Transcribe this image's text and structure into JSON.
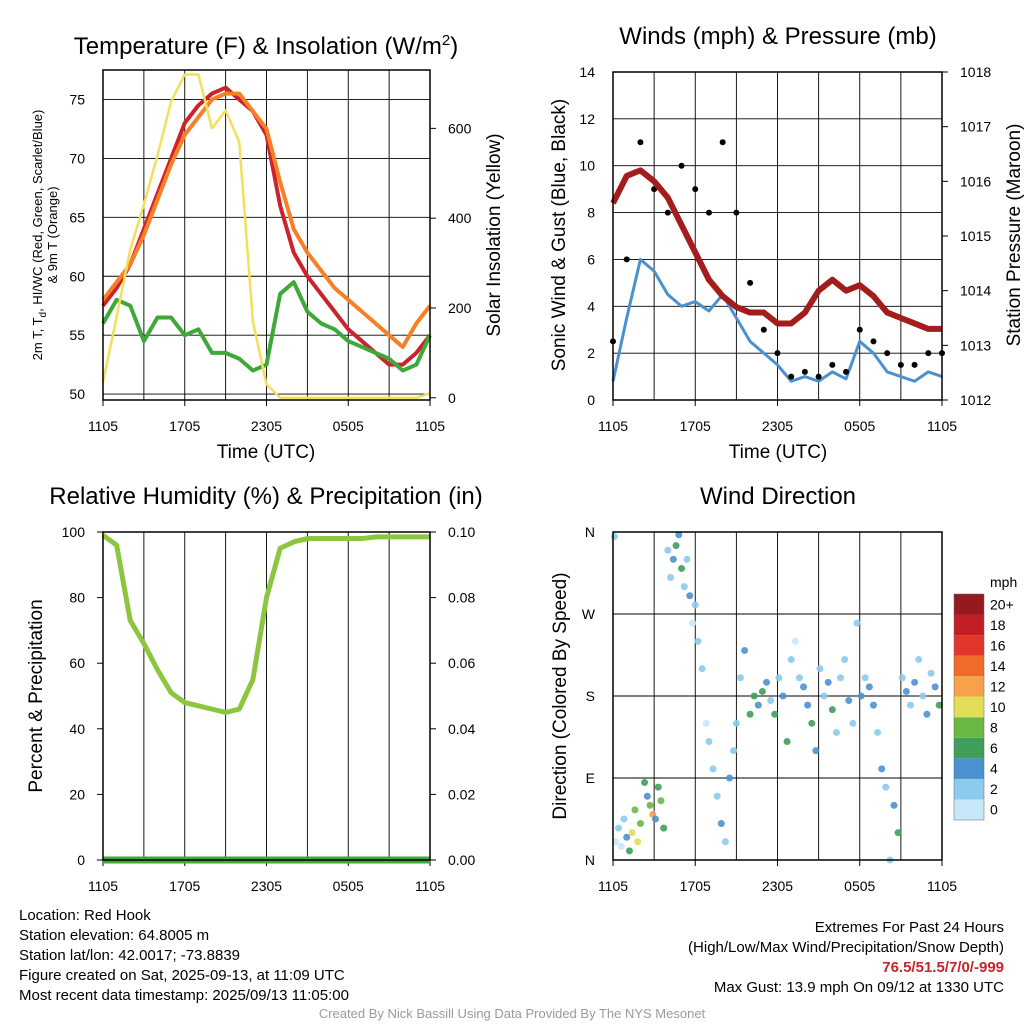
{
  "panels": {
    "temperature": {
      "title_main": "Temperature (F) & Insolation (W/m",
      "title_sup": "2",
      "title_end": ")",
      "ylabel_line1_a": "2m T, T",
      "ylabel_line1_sub": "d",
      "ylabel_line1_b": ", HI/WC (Red, Green, Scarlet/Blue)",
      "ylabel_line2": "& 9m T (Orange)",
      "ylabel_right": "Solar Insolation (Yellow)",
      "xlabel": "Time (UTC)"
    },
    "winds": {
      "title": "Winds (mph) & Pressure (mb)",
      "ylabel_left": "Sonic Wind & Gust (Blue, Black)",
      "ylabel_right": "Station Pressure (Maroon)",
      "xlabel": "Time (UTC)"
    },
    "humidity": {
      "title": "Relative Humidity (%) & Precipitation (in)",
      "ylabel_left": "Percent & Precipitation"
    },
    "direction": {
      "title": "Wind Direction",
      "ylabel_left": "Direction (Colored By Speed)",
      "colorbar_title": "mph"
    }
  },
  "footer": {
    "location": "Location: Red Hook",
    "elevation": "Station elevation: 64.8005 m",
    "latlon": "Station lat/lon: 42.0017; -73.8839",
    "created": "Figure created on Sat, 2025-09-13, at 11:09 UTC",
    "recent": "Most recent data timestamp: 2025/09/13 11:05:00",
    "extremes_title": "Extremes For Past 24 Hours",
    "extremes_legend": "(High/Low/Max Wind/Precipitation/Snow Depth)",
    "extremes_values": "76.5/51.5/7/0/-999",
    "max_gust": "Max Gust: 13.9 mph On 09/12 at 1330 UTC",
    "credit": "Created By Nick Bassill Using Data Provided By The NYS Mesonet"
  },
  "chart_data": [
    {
      "type": "line",
      "x_ticks": [
        "1105",
        "1705",
        "2305",
        "0505",
        "1105"
      ],
      "ylim": [
        49.5,
        77.5
      ],
      "y_ticks": [
        50,
        55,
        60,
        65,
        70,
        75
      ],
      "y2lim": [
        -5,
        730
      ],
      "y2_ticks": [
        0,
        200,
        400,
        600
      ],
      "x": [
        0,
        1,
        2,
        3,
        4,
        5,
        6,
        7,
        8,
        9,
        10,
        11,
        12,
        13,
        14,
        15,
        16,
        17,
        18,
        19,
        20,
        21,
        22,
        23,
        24
      ],
      "series": [
        {
          "axis": "left",
          "color": "#cc2229",
          "values": [
            57.5,
            59,
            61,
            64,
            67,
            70,
            73,
            74.5,
            75.5,
            76,
            75,
            74,
            72,
            66,
            62,
            60,
            58.5,
            57,
            55.5,
            54.5,
            53.5,
            52.5,
            52.5,
            53.5,
            55
          ]
        },
        {
          "axis": "left",
          "color": "#f58025",
          "values": [
            58,
            59.5,
            61,
            63.5,
            66.5,
            69.5,
            72,
            73.5,
            75,
            75.5,
            75.5,
            74,
            72.5,
            68,
            64,
            62,
            60.5,
            59,
            58,
            57,
            56,
            55,
            54,
            56,
            57.5
          ]
        },
        {
          "axis": "left",
          "color": "#3ea83a",
          "values": [
            56,
            58,
            57.5,
            54.5,
            56.5,
            56.5,
            55,
            55.5,
            53.5,
            53.5,
            53,
            52,
            52.5,
            58.5,
            59.5,
            57,
            56,
            55.5,
            54.5,
            54,
            53.5,
            53,
            52,
            52.5,
            55
          ]
        },
        {
          "axis": "right",
          "color": "#f3e05a",
          "values": [
            35,
            180,
            330,
            430,
            540,
            660,
            720,
            720,
            600,
            640,
            570,
            170,
            30,
            0,
            0,
            0,
            0,
            0,
            0,
            0,
            0,
            0,
            0,
            0,
            10
          ]
        }
      ]
    },
    {
      "type": "line",
      "x_ticks": [
        "1105",
        "1705",
        "2305",
        "0505",
        "1105"
      ],
      "ylim": [
        0,
        14
      ],
      "y_ticks": [
        0,
        2,
        4,
        6,
        8,
        10,
        12,
        14
      ],
      "y2lim": [
        1012,
        1018
      ],
      "y2_ticks": [
        1012,
        1013,
        1014,
        1015,
        1016,
        1017,
        1018
      ],
      "x": [
        0,
        1,
        2,
        3,
        4,
        5,
        6,
        7,
        8,
        9,
        10,
        11,
        12,
        13,
        14,
        15,
        16,
        17,
        18,
        19,
        20,
        21,
        22,
        23,
        24
      ],
      "series": [
        {
          "axis": "left",
          "color": "#4b91cf",
          "values": [
            0.8,
            3.5,
            6,
            5.5,
            4.5,
            4,
            4.2,
            3.8,
            4.5,
            3.5,
            2.5,
            2,
            1.5,
            0.8,
            1,
            0.8,
            1.2,
            0.9,
            2.5,
            2,
            1.2,
            1,
            0.8,
            1.2,
            1
          ]
        },
        {
          "axis": "left",
          "color": "#000000",
          "kind": "scatter",
          "values": [
            2.5,
            6,
            11,
            9,
            8,
            10,
            9,
            8,
            11,
            8,
            5,
            3,
            2,
            1,
            1.2,
            1,
            1.5,
            1.2,
            3,
            2.5,
            2,
            1.5,
            1.5,
            2,
            2
          ]
        },
        {
          "axis": "right",
          "color": "#a31d1d",
          "values": [
            1015.6,
            1016.1,
            1016.2,
            1016.0,
            1015.7,
            1015.2,
            1014.7,
            1014.2,
            1013.9,
            1013.7,
            1013.6,
            1013.6,
            1013.4,
            1013.4,
            1013.6,
            1014.0,
            1014.2,
            1014.0,
            1014.1,
            1013.9,
            1013.6,
            1013.5,
            1013.4,
            1013.3,
            1013.3
          ]
        }
      ]
    },
    {
      "type": "line",
      "x_ticks": [
        "1105",
        "1705",
        "2305",
        "0505",
        "1105"
      ],
      "ylim": [
        0,
        100
      ],
      "y_ticks": [
        0,
        20,
        40,
        60,
        80,
        100
      ],
      "y2lim": [
        0,
        0.1
      ],
      "y2_ticks": [
        "0.00",
        "0.02",
        "0.04",
        "0.06",
        "0.08",
        "0.10"
      ],
      "x": [
        0,
        1,
        2,
        3,
        4,
        5,
        6,
        7,
        8,
        9,
        10,
        11,
        12,
        13,
        14,
        15,
        16,
        17,
        18,
        19,
        20,
        21,
        22,
        23,
        24
      ],
      "series": [
        {
          "axis": "left",
          "color": "#8cc63f",
          "values": [
            99,
            96,
            73,
            66,
            58,
            51,
            48,
            47,
            46,
            45,
            46,
            55,
            80,
            95,
            97,
            98,
            98,
            98,
            98,
            98,
            98.5,
            98.5,
            98.5,
            98.5,
            98.5
          ]
        },
        {
          "axis": "right",
          "color": "#3ea83a",
          "values": [
            0,
            0,
            0,
            0,
            0,
            0,
            0,
            0,
            0,
            0,
            0,
            0,
            0,
            0,
            0,
            0,
            0,
            0,
            0,
            0,
            0,
            0,
            0,
            0,
            0
          ]
        }
      ]
    },
    {
      "type": "scatter",
      "x_ticks": [
        "1105",
        "1705",
        "2305",
        "0505",
        "1105"
      ],
      "y_ticks": [
        "N",
        "E",
        "S",
        "W",
        "N"
      ],
      "ylim": [
        0,
        360
      ],
      "colorbar": {
        "labels": [
          "0",
          "2",
          "4",
          "6",
          "8",
          "10",
          "12",
          "14",
          "16",
          "18",
          "20+"
        ],
        "colors": [
          "#c6e8f8",
          "#8ccbed",
          "#4b91cf",
          "#3f9e5a",
          "#6ab744",
          "#e3de57",
          "#f7a148",
          "#f06a2a",
          "#e2362a",
          "#c11f25",
          "#941a1d"
        ]
      },
      "points": [
        [
          0.1,
          355,
          1
        ],
        [
          0.2,
          20,
          0
        ],
        [
          0.4,
          35,
          1
        ],
        [
          0.6,
          15,
          0
        ],
        [
          0.8,
          45,
          1
        ],
        [
          1.0,
          25,
          2
        ],
        [
          1.2,
          10,
          3
        ],
        [
          1.4,
          30,
          5
        ],
        [
          1.6,
          55,
          4
        ],
        [
          1.8,
          20,
          5
        ],
        [
          2.0,
          40,
          4
        ],
        [
          2.3,
          85,
          3
        ],
        [
          2.5,
          70,
          2
        ],
        [
          2.7,
          60,
          4
        ],
        [
          2.9,
          50,
          6
        ],
        [
          3.1,
          45,
          2
        ],
        [
          3.3,
          80,
          3
        ],
        [
          3.5,
          65,
          4
        ],
        [
          3.7,
          35,
          3
        ],
        [
          4.0,
          340,
          1
        ],
        [
          4.2,
          310,
          1
        ],
        [
          4.4,
          330,
          2
        ],
        [
          4.6,
          345,
          3
        ],
        [
          4.8,
          357,
          2
        ],
        [
          5.0,
          320,
          3
        ],
        [
          5.2,
          300,
          1
        ],
        [
          5.4,
          330,
          1
        ],
        [
          5.6,
          290,
          2
        ],
        [
          5.8,
          260,
          0
        ],
        [
          6.0,
          280,
          1
        ],
        [
          6.2,
          240,
          1
        ],
        [
          6.5,
          210,
          1
        ],
        [
          6.8,
          150,
          0
        ],
        [
          7.0,
          130,
          1
        ],
        [
          7.3,
          100,
          1
        ],
        [
          7.6,
          70,
          1
        ],
        [
          7.9,
          40,
          2
        ],
        [
          8.2,
          20,
          1
        ],
        [
          8.5,
          90,
          2
        ],
        [
          8.8,
          120,
          1
        ],
        [
          9.0,
          150,
          1
        ],
        [
          9.3,
          200,
          1
        ],
        [
          9.6,
          230,
          2
        ],
        [
          10.0,
          160,
          3
        ],
        [
          10.3,
          180,
          3
        ],
        [
          10.6,
          170,
          2
        ],
        [
          10.9,
          185,
          3
        ],
        [
          11.2,
          195,
          2
        ],
        [
          11.5,
          175,
          1
        ],
        [
          11.8,
          160,
          3
        ],
        [
          12.1,
          200,
          1
        ],
        [
          12.4,
          180,
          2
        ],
        [
          12.7,
          130,
          3
        ],
        [
          13.0,
          220,
          1
        ],
        [
          13.3,
          240,
          0
        ],
        [
          13.6,
          200,
          1
        ],
        [
          13.9,
          190,
          2
        ],
        [
          14.2,
          170,
          2
        ],
        [
          14.5,
          150,
          3
        ],
        [
          14.8,
          120,
          2
        ],
        [
          15.1,
          210,
          1
        ],
        [
          15.4,
          180,
          1
        ],
        [
          15.7,
          195,
          2
        ],
        [
          16.0,
          165,
          3
        ],
        [
          16.3,
          140,
          1
        ],
        [
          16.6,
          200,
          1
        ],
        [
          16.9,
          220,
          1
        ],
        [
          17.2,
          175,
          2
        ],
        [
          17.5,
          150,
          1
        ],
        [
          17.8,
          260,
          1
        ],
        [
          18.1,
          180,
          2
        ],
        [
          18.4,
          200,
          1
        ],
        [
          18.7,
          190,
          2
        ],
        [
          19.0,
          170,
          2
        ],
        [
          19.3,
          140,
          1
        ],
        [
          19.6,
          100,
          2
        ],
        [
          19.9,
          80,
          1
        ],
        [
          20.2,
          0,
          1
        ],
        [
          20.5,
          60,
          2
        ],
        [
          20.8,
          30,
          3
        ],
        [
          21.1,
          200,
          1
        ],
        [
          21.4,
          185,
          2
        ],
        [
          21.7,
          170,
          1
        ],
        [
          22.0,
          195,
          2
        ],
        [
          22.3,
          220,
          1
        ],
        [
          22.6,
          180,
          1
        ],
        [
          22.9,
          160,
          2
        ],
        [
          23.2,
          205,
          1
        ],
        [
          23.5,
          190,
          2
        ],
        [
          23.8,
          170,
          3
        ]
      ]
    }
  ]
}
